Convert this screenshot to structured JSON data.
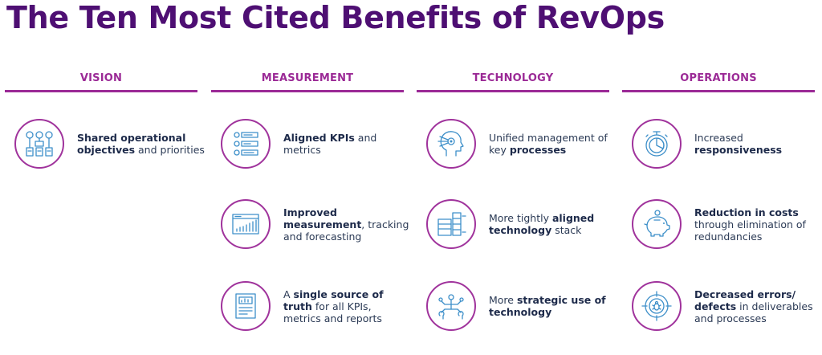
{
  "title": "The Ten Most Cited Benefits of RevOps",
  "columns": [
    {
      "heading": "VISION",
      "items": [
        {
          "icon": "org-chart-icon",
          "bold1": "Shared operational objectives",
          "pre": "",
          "mid": " and priorities",
          "bold2": "",
          "post": ""
        }
      ]
    },
    {
      "heading": "MEASUREMENT",
      "items": [
        {
          "icon": "kpi-list-icon",
          "pre": "",
          "bold1": "Aligned KPIs",
          "mid": " and metrics",
          "bold2": "",
          "post": ""
        },
        {
          "icon": "growth-chart-icon",
          "pre": "",
          "bold1": "Improved measurement",
          "mid": ", tracking and forecasting",
          "bold2": "",
          "post": ""
        },
        {
          "icon": "report-document-icon",
          "pre": "A ",
          "bold1": "single source of truth",
          "mid": " for all KPIs, metrics and reports",
          "bold2": "",
          "post": ""
        }
      ]
    },
    {
      "heading": "TECHNOLOGY",
      "items": [
        {
          "icon": "ai-head-icon",
          "pre": "Unified management of key ",
          "bold1": "processes",
          "mid": "",
          "bold2": "",
          "post": ""
        },
        {
          "icon": "server-stack-icon",
          "pre": "More tightly ",
          "bold1": "aligned technology",
          "mid": " stack",
          "bold2": "",
          "post": ""
        },
        {
          "icon": "tools-circuit-icon",
          "pre": "More ",
          "bold1": "strategic use of technology",
          "mid": "",
          "bold2": "",
          "post": ""
        }
      ]
    },
    {
      "heading": "OPERATIONS",
      "items": [
        {
          "icon": "stopwatch-icon",
          "pre": "Increased ",
          "bold1": "responsiveness",
          "mid": "",
          "bold2": "",
          "post": ""
        },
        {
          "icon": "piggy-bank-icon",
          "pre": "",
          "bold1": "Reduction in costs",
          "mid": " through elimination of redundancies",
          "bold2": "",
          "post": ""
        },
        {
          "icon": "bug-target-icon",
          "pre": "",
          "bold1": "Decreased errors/ defects",
          "mid": " in deliverables and processes",
          "bold2": "",
          "post": ""
        }
      ]
    }
  ],
  "colors": {
    "title": "#4e0f73",
    "heading": "#9b2a96",
    "icon_line": "#3d8fc9",
    "ring": "#a0339c",
    "text": "#2b3a55"
  }
}
